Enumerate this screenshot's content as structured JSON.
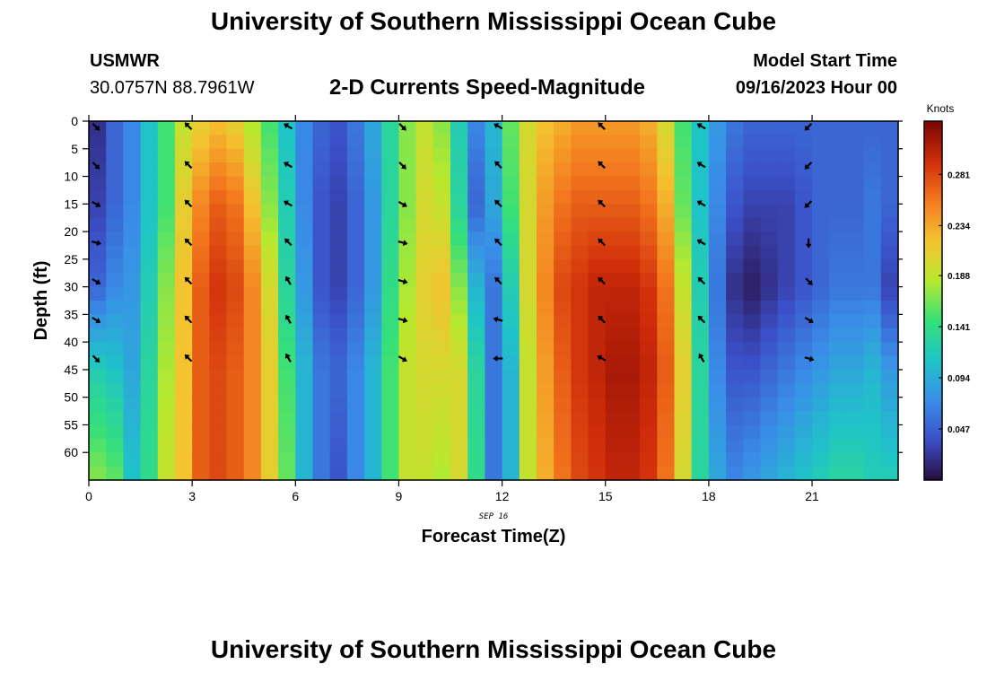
{
  "header": {
    "title": "University of Southern Mississippi Ocean Cube",
    "station": "USMWR",
    "coords": "30.0757N  88.7961W",
    "plot_title": "2-D Currents Speed-Magnitude",
    "start_label": "Model Start Time",
    "start_value": "09/16/2023 Hour 00"
  },
  "footer": {
    "title": "University of Southern Mississippi Ocean Cube"
  },
  "colors": {
    "stops": [
      "#2a0c3e",
      "#3b4fc7",
      "#3a8ee8",
      "#1fc4c8",
      "#35e07a",
      "#b8e82e",
      "#f4c330",
      "#f47a1f",
      "#d02d0a",
      "#7a0403"
    ]
  },
  "chart_data": {
    "type": "heatmap",
    "title": "2-D Currents Speed-Magnitude",
    "xlabel": "Forecast Time(Z)",
    "ylabel": "Depth (ft)",
    "date_label": "SEP 16",
    "x_range": [
      0,
      23.5
    ],
    "y_range": [
      0,
      65
    ],
    "x_ticks": [
      "0",
      "3",
      "6",
      "9",
      "12",
      "15",
      "18",
      "21"
    ],
    "x_tick_values": [
      0,
      3,
      6,
      9,
      12,
      15,
      18,
      21
    ],
    "y_ticks": [
      "0",
      "5",
      "10",
      "15",
      "20",
      "25",
      "30",
      "35",
      "40",
      "45",
      "50",
      "55",
      "60"
    ],
    "y_tick_values": [
      0,
      5,
      10,
      15,
      20,
      25,
      30,
      35,
      40,
      45,
      50,
      55,
      60
    ],
    "colorbar": {
      "unit": "Knots",
      "range": [
        0.0,
        0.33
      ],
      "ticks": [
        "0.047",
        "0.094",
        "0.141",
        "0.188",
        "0.234",
        "0.281"
      ],
      "tick_values": [
        0.047,
        0.094,
        0.141,
        0.188,
        0.234,
        0.281
      ]
    },
    "column_profiles": [
      {
        "t": 0.0,
        "speed": [
          0.02,
          0.03,
          0.05,
          0.12,
          0.17
        ]
      },
      {
        "t": 0.5,
        "speed": [
          0.05,
          0.05,
          0.07,
          0.11,
          0.16
        ]
      },
      {
        "t": 1.0,
        "speed": [
          0.07,
          0.07,
          0.08,
          0.09,
          0.11
        ]
      },
      {
        "t": 1.5,
        "speed": [
          0.11,
          0.11,
          0.12,
          0.13,
          0.14
        ]
      },
      {
        "t": 2.0,
        "speed": [
          0.15,
          0.15,
          0.17,
          0.18,
          0.19
        ]
      },
      {
        "t": 2.5,
        "speed": [
          0.19,
          0.21,
          0.22,
          0.22,
          0.22
        ]
      },
      {
        "t": 3.0,
        "speed": [
          0.21,
          0.25,
          0.27,
          0.27,
          0.27
        ]
      },
      {
        "t": 3.5,
        "speed": [
          0.22,
          0.27,
          0.29,
          0.28,
          0.28
        ]
      },
      {
        "t": 4.0,
        "speed": [
          0.21,
          0.26,
          0.28,
          0.27,
          0.27
        ]
      },
      {
        "t": 4.5,
        "speed": [
          0.18,
          0.22,
          0.25,
          0.25,
          0.25
        ]
      },
      {
        "t": 5.0,
        "speed": [
          0.15,
          0.17,
          0.2,
          0.21,
          0.21
        ]
      },
      {
        "t": 5.5,
        "speed": [
          0.11,
          0.12,
          0.13,
          0.15,
          0.16
        ]
      },
      {
        "t": 6.0,
        "speed": [
          0.07,
          0.07,
          0.08,
          0.1,
          0.1
        ]
      },
      {
        "t": 6.5,
        "speed": [
          0.05,
          0.04,
          0.04,
          0.06,
          0.06
        ]
      },
      {
        "t": 7.0,
        "speed": [
          0.04,
          0.03,
          0.03,
          0.05,
          0.04
        ]
      },
      {
        "t": 7.5,
        "speed": [
          0.06,
          0.05,
          0.05,
          0.07,
          0.07
        ]
      },
      {
        "t": 8.0,
        "speed": [
          0.09,
          0.08,
          0.08,
          0.1,
          0.1
        ]
      },
      {
        "t": 8.5,
        "speed": [
          0.13,
          0.13,
          0.14,
          0.15,
          0.15
        ]
      },
      {
        "t": 9.0,
        "speed": [
          0.17,
          0.17,
          0.18,
          0.19,
          0.19
        ]
      },
      {
        "t": 9.5,
        "speed": [
          0.19,
          0.2,
          0.21,
          0.2,
          0.19
        ]
      },
      {
        "t": 10.0,
        "speed": [
          0.17,
          0.19,
          0.22,
          0.2,
          0.18
        ]
      },
      {
        "t": 10.5,
        "speed": [
          0.12,
          0.13,
          0.17,
          0.2,
          0.2
        ]
      },
      {
        "t": 11.0,
        "speed": [
          0.07,
          0.05,
          0.1,
          0.13,
          0.14
        ]
      },
      {
        "t": 11.5,
        "speed": [
          0.1,
          0.09,
          0.06,
          0.06,
          0.06
        ]
      },
      {
        "t": 12.0,
        "speed": [
          0.16,
          0.15,
          0.12,
          0.1,
          0.1
        ]
      },
      {
        "t": 12.5,
        "speed": [
          0.2,
          0.2,
          0.2,
          0.19,
          0.19
        ]
      },
      {
        "t": 13.0,
        "speed": [
          0.22,
          0.24,
          0.25,
          0.24,
          0.23
        ]
      },
      {
        "t": 13.5,
        "speed": [
          0.23,
          0.26,
          0.28,
          0.27,
          0.26
        ]
      },
      {
        "t": 14.0,
        "speed": [
          0.24,
          0.27,
          0.29,
          0.29,
          0.28
        ]
      },
      {
        "t": 14.5,
        "speed": [
          0.24,
          0.27,
          0.3,
          0.3,
          0.29
        ]
      },
      {
        "t": 15.0,
        "speed": [
          0.24,
          0.27,
          0.3,
          0.31,
          0.3
        ]
      },
      {
        "t": 15.5,
        "speed": [
          0.24,
          0.27,
          0.3,
          0.31,
          0.3
        ]
      },
      {
        "t": 16.0,
        "speed": [
          0.23,
          0.26,
          0.29,
          0.3,
          0.29
        ]
      },
      {
        "t": 16.5,
        "speed": [
          0.2,
          0.23,
          0.26,
          0.27,
          0.26
        ]
      },
      {
        "t": 17.0,
        "speed": [
          0.15,
          0.16,
          0.19,
          0.21,
          0.2
        ]
      },
      {
        "t": 17.5,
        "speed": [
          0.11,
          0.11,
          0.12,
          0.13,
          0.13
        ]
      },
      {
        "t": 18.0,
        "speed": [
          0.08,
          0.07,
          0.06,
          0.07,
          0.09
        ]
      },
      {
        "t": 18.5,
        "speed": [
          0.06,
          0.04,
          0.02,
          0.04,
          0.07
        ]
      },
      {
        "t": 19.0,
        "speed": [
          0.05,
          0.03,
          0.01,
          0.04,
          0.08
        ]
      },
      {
        "t": 19.5,
        "speed": [
          0.05,
          0.03,
          0.02,
          0.05,
          0.09
        ]
      },
      {
        "t": 20.0,
        "speed": [
          0.05,
          0.03,
          0.03,
          0.06,
          0.1
        ]
      },
      {
        "t": 20.5,
        "speed": [
          0.05,
          0.04,
          0.04,
          0.07,
          0.11
        ]
      },
      {
        "t": 21.0,
        "speed": [
          0.05,
          0.05,
          0.05,
          0.08,
          0.12
        ]
      },
      {
        "t": 21.5,
        "speed": [
          0.05,
          0.05,
          0.06,
          0.09,
          0.13
        ]
      },
      {
        "t": 22.0,
        "speed": [
          0.05,
          0.05,
          0.06,
          0.09,
          0.13
        ]
      },
      {
        "t": 22.5,
        "speed": [
          0.05,
          0.06,
          0.06,
          0.1,
          0.12
        ]
      },
      {
        "t": 23.0,
        "speed": [
          0.05,
          0.05,
          0.03,
          0.08,
          0.12
        ]
      }
    ],
    "profile_depths": [
      0,
      15,
      30,
      45,
      65
    ],
    "vector_depths": [
      0,
      7,
      14,
      21,
      28,
      35,
      42
    ],
    "vectors": [
      {
        "t": 0.2,
        "dirs": [
          135,
          135,
          120,
          105,
          120,
          120,
          135
        ]
      },
      {
        "t": 2.9,
        "dirs": [
          315,
          315,
          315,
          315,
          315,
          315,
          315
        ]
      },
      {
        "t": 5.8,
        "dirs": [
          300,
          300,
          300,
          315,
          330,
          330,
          330
        ]
      },
      {
        "t": 9.1,
        "dirs": [
          135,
          135,
          120,
          105,
          105,
          105,
          120
        ]
      },
      {
        "t": 11.9,
        "dirs": [
          300,
          315,
          315,
          315,
          315,
          285,
          270
        ]
      },
      {
        "t": 14.9,
        "dirs": [
          315,
          315,
          315,
          315,
          315,
          315,
          300
        ]
      },
      {
        "t": 17.8,
        "dirs": [
          300,
          300,
          300,
          300,
          315,
          315,
          330
        ]
      },
      {
        "t": 20.9,
        "dirs": [
          225,
          225,
          225,
          180,
          135,
          120,
          105
        ]
      }
    ]
  }
}
